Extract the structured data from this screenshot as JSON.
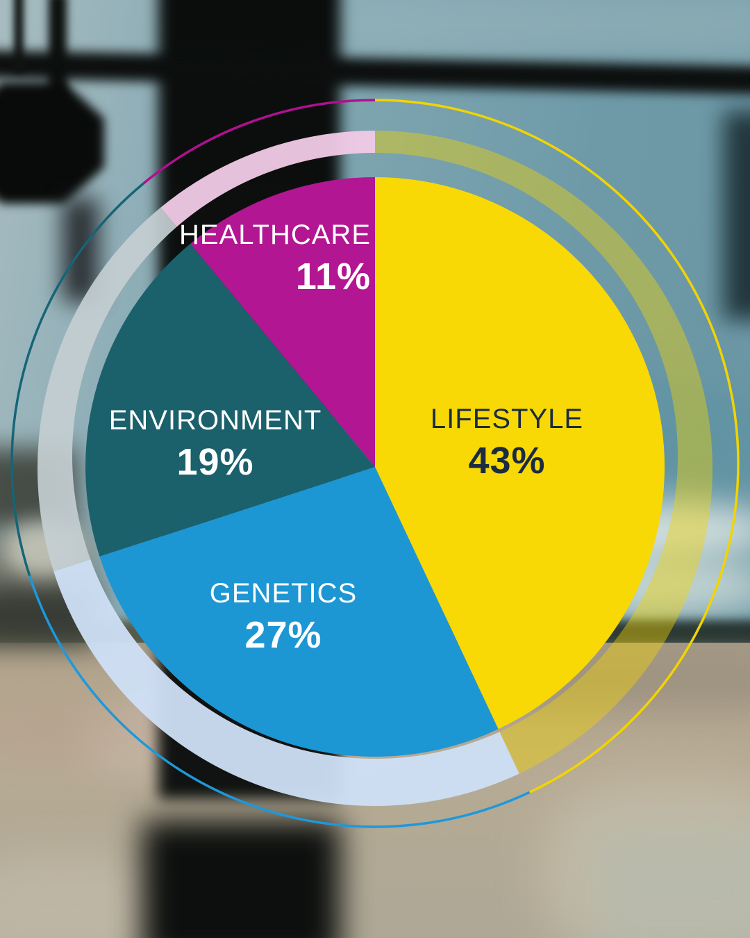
{
  "chart_data": {
    "type": "pie",
    "title": "",
    "unit": "%",
    "direction": "clockwise",
    "start_angle_deg": 0,
    "legend_position": "on-slice",
    "segments": [
      {
        "label": "LIFESTYLE",
        "value": 43,
        "display": "43%",
        "slice_color": "#F8D906",
        "band_color": "#F2D400",
        "band_opacity": 0.42,
        "line_color": "#F2D400",
        "label_color": "#1B2B40"
      },
      {
        "label": "GENETICS",
        "value": 27,
        "display": "27%",
        "slice_color": "#1D96D4",
        "band_color": "#CFDFF5",
        "band_opacity": 0.95,
        "line_color": "#1E98DB",
        "label_color": "#FFFFFF"
      },
      {
        "label": "ENVIRONMENT",
        "value": 19,
        "display": "19%",
        "slice_color": "#1B616C",
        "band_color": "#C4CED1",
        "band_opacity": 0.92,
        "line_color": "#156577",
        "label_color": "#FFFFFF"
      },
      {
        "label": "HEALTHCARE",
        "value": 11,
        "display": "11%",
        "slice_color": "#B31692",
        "band_color": "#EFC9E5",
        "band_opacity": 0.96,
        "line_color": "#B0108F",
        "label_color": "#FFFFFF"
      }
    ]
  }
}
